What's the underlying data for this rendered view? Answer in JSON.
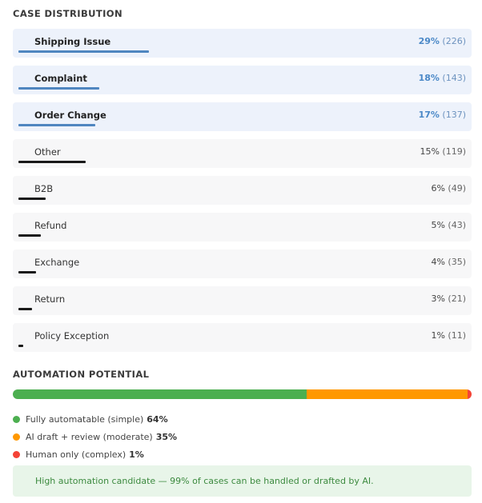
{
  "case_distribution": {
    "title": "CASE DISTRIBUTION",
    "items": [
      {
        "label": "Shipping Issue",
        "pct": "29%",
        "count": "(226)",
        "fraction": 0.29,
        "highlight": true
      },
      {
        "label": "Complaint",
        "pct": "18%",
        "count": "(143)",
        "fraction": 0.18,
        "highlight": true
      },
      {
        "label": "Order Change",
        "pct": "17%",
        "count": "(137)",
        "fraction": 0.17,
        "highlight": true
      },
      {
        "label": "Other",
        "pct": "15%",
        "count": "(119)",
        "fraction": 0.15,
        "highlight": false
      },
      {
        "label": "B2B",
        "pct": "6%",
        "count": "(49)",
        "fraction": 0.06,
        "highlight": false
      },
      {
        "label": "Refund",
        "pct": "5%",
        "count": "(43)",
        "fraction": 0.05,
        "highlight": false
      },
      {
        "label": "Exchange",
        "pct": "4%",
        "count": "(35)",
        "fraction": 0.04,
        "highlight": false
      },
      {
        "label": "Return",
        "pct": "3%",
        "count": "(21)",
        "fraction": 0.03,
        "highlight": false
      },
      {
        "label": "Policy Exception",
        "pct": "1%",
        "count": "(11)",
        "fraction": 0.01,
        "highlight": false
      }
    ]
  },
  "automation": {
    "title": "AUTOMATION POTENTIAL",
    "segments": [
      {
        "label": "Fully automatable (simple)",
        "pct": "64%",
        "fraction": 0.64,
        "color": "#4caf50"
      },
      {
        "label": "AI draft + review (moderate)",
        "pct": "35%",
        "fraction": 0.35,
        "color": "#ff9800"
      },
      {
        "label": "Human only (complex)",
        "pct": "1%",
        "fraction": 0.01,
        "color": "#f44336"
      }
    ],
    "note": "High automation candidate — 99% of cases can be handled or drafted by AI."
  }
}
